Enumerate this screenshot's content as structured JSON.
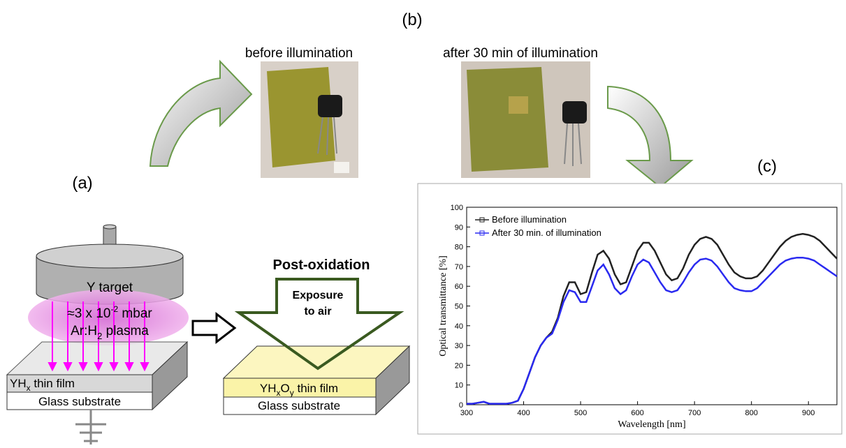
{
  "panel_labels": {
    "a": "(a)",
    "b": "(b)",
    "c": "(c)"
  },
  "photos": {
    "before": "before illumination",
    "after": "after 30 min of illumination"
  },
  "deposition": {
    "target": "Y target",
    "pressure": {
      "prefix": "≈3 x 10",
      "sup": "-2",
      "suffix": " mbar"
    },
    "plasma": {
      "prefix": "Ar:H",
      "sub": "2",
      "suffix": " plasma"
    },
    "film": {
      "prefix": "YH",
      "sub": "x",
      "suffix": " thin film"
    },
    "substrate": "Glass substrate"
  },
  "oxidation": {
    "title": "Post-oxidation",
    "arrow_lines": [
      "Exposure",
      "to air"
    ],
    "film": {
      "prefix": "YH",
      "sub1": "x",
      "mid": "O",
      "sub2": "y",
      "suffix": " thin film"
    },
    "substrate": "Glass substrate"
  },
  "chart_data": {
    "type": "line",
    "xlabel": "Wavelength [nm]",
    "ylabel": "Optical transmittance [%]",
    "xlim": [
      300,
      950
    ],
    "xticks": [
      300,
      400,
      500,
      600,
      700,
      800,
      900
    ],
    "ylim": [
      0,
      100
    ],
    "yticks": [
      0,
      10,
      20,
      30,
      40,
      50,
      60,
      70,
      80,
      90,
      100
    ],
    "legend": "top-left",
    "x": [
      300,
      310,
      320,
      330,
      340,
      350,
      360,
      370,
      380,
      390,
      400,
      410,
      420,
      430,
      440,
      450,
      460,
      470,
      480,
      490,
      500,
      510,
      520,
      530,
      540,
      550,
      560,
      570,
      580,
      590,
      600,
      610,
      620,
      630,
      640,
      650,
      660,
      670,
      680,
      690,
      700,
      710,
      720,
      730,
      740,
      750,
      760,
      770,
      780,
      790,
      800,
      810,
      820,
      830,
      840,
      850,
      860,
      870,
      880,
      890,
      900,
      910,
      920,
      930,
      940,
      950
    ],
    "series": [
      {
        "name": "Before illumination",
        "color": "#222222",
        "values": [
          0.5,
          0.5,
          1,
          1.5,
          0.5,
          0.5,
          0.5,
          0.5,
          1,
          2,
          8,
          16,
          24,
          30,
          34,
          37,
          44,
          55,
          62,
          62,
          56,
          57,
          67,
          76,
          78,
          74,
          66,
          61,
          62,
          70,
          78,
          82,
          82,
          78,
          72,
          66,
          63,
          64,
          69,
          76,
          81,
          84,
          85,
          84,
          81,
          76,
          71,
          67,
          65,
          64,
          64,
          65,
          68,
          72,
          76,
          80,
          83,
          85,
          86,
          86.5,
          86,
          85,
          83,
          80,
          77,
          74
        ]
      },
      {
        "name": "After 30 min. of illumination",
        "color": "#2a2af0",
        "values": [
          0.5,
          0.5,
          1,
          1.5,
          0.5,
          0.5,
          0.5,
          0.5,
          1,
          2,
          8,
          16,
          24,
          30,
          34,
          36,
          43,
          52,
          58,
          57,
          52,
          52,
          60,
          68,
          71,
          66,
          59,
          56,
          58,
          65,
          71,
          73.5,
          72,
          67,
          62,
          58,
          57,
          58,
          62,
          67,
          71,
          73.5,
          74,
          73,
          70,
          66,
          62,
          59,
          58,
          57.5,
          57.5,
          59,
          62,
          65,
          68,
          71,
          73,
          74,
          74.5,
          74.5,
          74,
          73,
          71,
          69,
          67,
          65
        ]
      }
    ]
  }
}
